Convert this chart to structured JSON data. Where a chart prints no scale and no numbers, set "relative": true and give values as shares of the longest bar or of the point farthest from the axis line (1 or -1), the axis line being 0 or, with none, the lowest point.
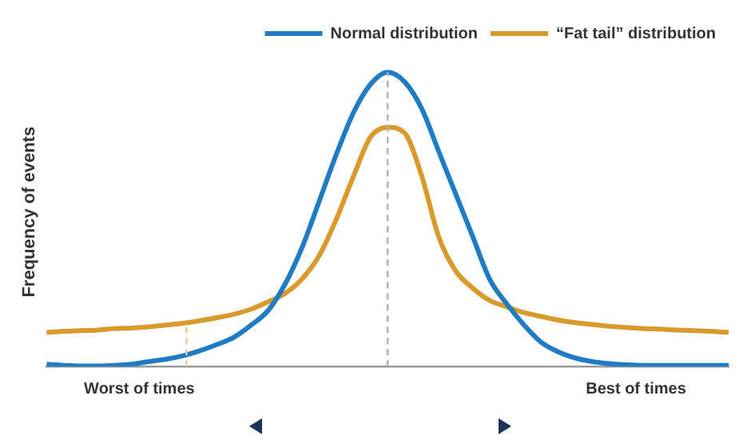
{
  "chart_data": {
    "type": "line",
    "relative": true,
    "ylabel": "Frequency of events",
    "legend": "top right",
    "marker": "none",
    "grid": false,
    "categories": [
      null,
      null,
      null,
      null,
      null,
      null,
      null,
      null,
      null,
      null,
      null,
      null,
      null,
      null,
      null,
      null,
      null,
      null,
      null,
      null,
      null,
      null,
      null,
      null,
      null,
      null,
      null,
      null,
      null,
      null,
      null,
      null,
      null,
      null,
      null,
      null,
      null,
      null,
      null,
      null,
      null
    ],
    "series": [
      {
        "name": "Normal distribution",
        "color": "#1e7bc4",
        "values": [
          0.008,
          0.004,
          0.002,
          0.002,
          0.004,
          0.008,
          0.017,
          0.025,
          0.037,
          0.054,
          0.075,
          0.1,
          0.141,
          0.191,
          0.282,
          0.407,
          0.564,
          0.722,
          0.863,
          0.959,
          1,
          0.967,
          0.876,
          0.73,
          0.585,
          0.44,
          0.295,
          0.212,
          0.141,
          0.083,
          0.05,
          0.029,
          0.017,
          0.01,
          0.006,
          0.004,
          0.004,
          0.004,
          0.004,
          0.004,
          0.004
        ]
      },
      {
        "name": "“Fat tail” distribution",
        "color": "#d99a2b",
        "values": [
          0.116,
          0.12,
          0.122,
          0.124,
          0.129,
          0.131,
          0.135,
          0.141,
          0.147,
          0.156,
          0.166,
          0.178,
          0.195,
          0.22,
          0.249,
          0.299,
          0.378,
          0.502,
          0.647,
          0.78,
          0.813,
          0.793,
          0.647,
          0.44,
          0.324,
          0.266,
          0.224,
          0.203,
          0.183,
          0.17,
          0.158,
          0.149,
          0.143,
          0.137,
          0.133,
          0.129,
          0.127,
          0.124,
          0.122,
          0.12,
          0.116
        ]
      }
    ],
    "annotations": [
      "Worst of times",
      "Best of times"
    ]
  }
}
